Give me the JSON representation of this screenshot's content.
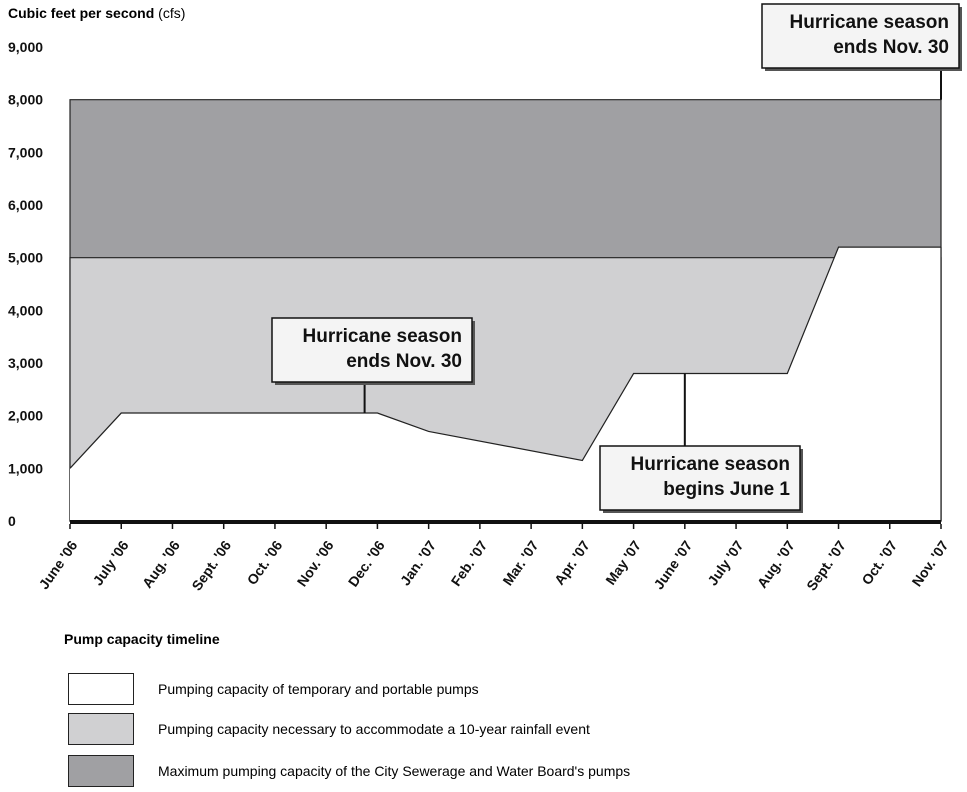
{
  "chart_data": {
    "type": "area",
    "ylabel_bold": "Cubic feet per second",
    "ylabel_unit": "(cfs)",
    "ylim": [
      0,
      9000
    ],
    "yticks": [
      "0",
      "1,000",
      "2,000",
      "3,000",
      "4,000",
      "5,000",
      "6,000",
      "7,000",
      "8,000",
      "9,000"
    ],
    "categories": [
      "June '06",
      "July '06",
      "Aug. '06",
      "Sept. '06",
      "Oct. '06",
      "Nov. '06",
      "Dec. '06",
      "Jan. '07",
      "Feb. '07",
      "Mar. '07",
      "Apr. '07",
      "May '07",
      "June '07",
      "July '07",
      "Aug. '07",
      "Sept. '07",
      "Oct. '07",
      "Nov. '07"
    ],
    "series": [
      {
        "name": "Pumping capacity of temporary and portable pumps",
        "color": "#ffffff",
        "points": [
          [
            0,
            1000
          ],
          [
            1,
            2050
          ],
          [
            6,
            2050
          ],
          [
            7,
            1700
          ],
          [
            10,
            1150
          ],
          [
            11,
            2800
          ],
          [
            14,
            2800
          ],
          [
            15,
            5200
          ],
          [
            17,
            5200
          ]
        ]
      },
      {
        "name": "Pumping capacity necessary to accommodate a 10-year rainfall event",
        "color": "#d0d0d2",
        "points": [
          [
            0,
            5000
          ],
          [
            17,
            5000
          ]
        ]
      },
      {
        "name": "Maximum pumping capacity of the City Sewerage and Water Board's pumps",
        "color": "#a0a0a3",
        "points": [
          [
            0,
            8000
          ],
          [
            17,
            8000
          ]
        ]
      }
    ],
    "annotations": [
      {
        "lines": [
          "Hurricane season",
          "ends Nov. 30"
        ],
        "x": 5.75,
        "y": 2050
      },
      {
        "lines": [
          "Hurricane season",
          "begins June 1"
        ],
        "x": 12,
        "y": 2800
      },
      {
        "lines": [
          "Hurricane season",
          "ends Nov. 30"
        ],
        "x": 17,
        "y": 8000
      }
    ],
    "legend_title": "Pump capacity timeline",
    "grid": false
  }
}
